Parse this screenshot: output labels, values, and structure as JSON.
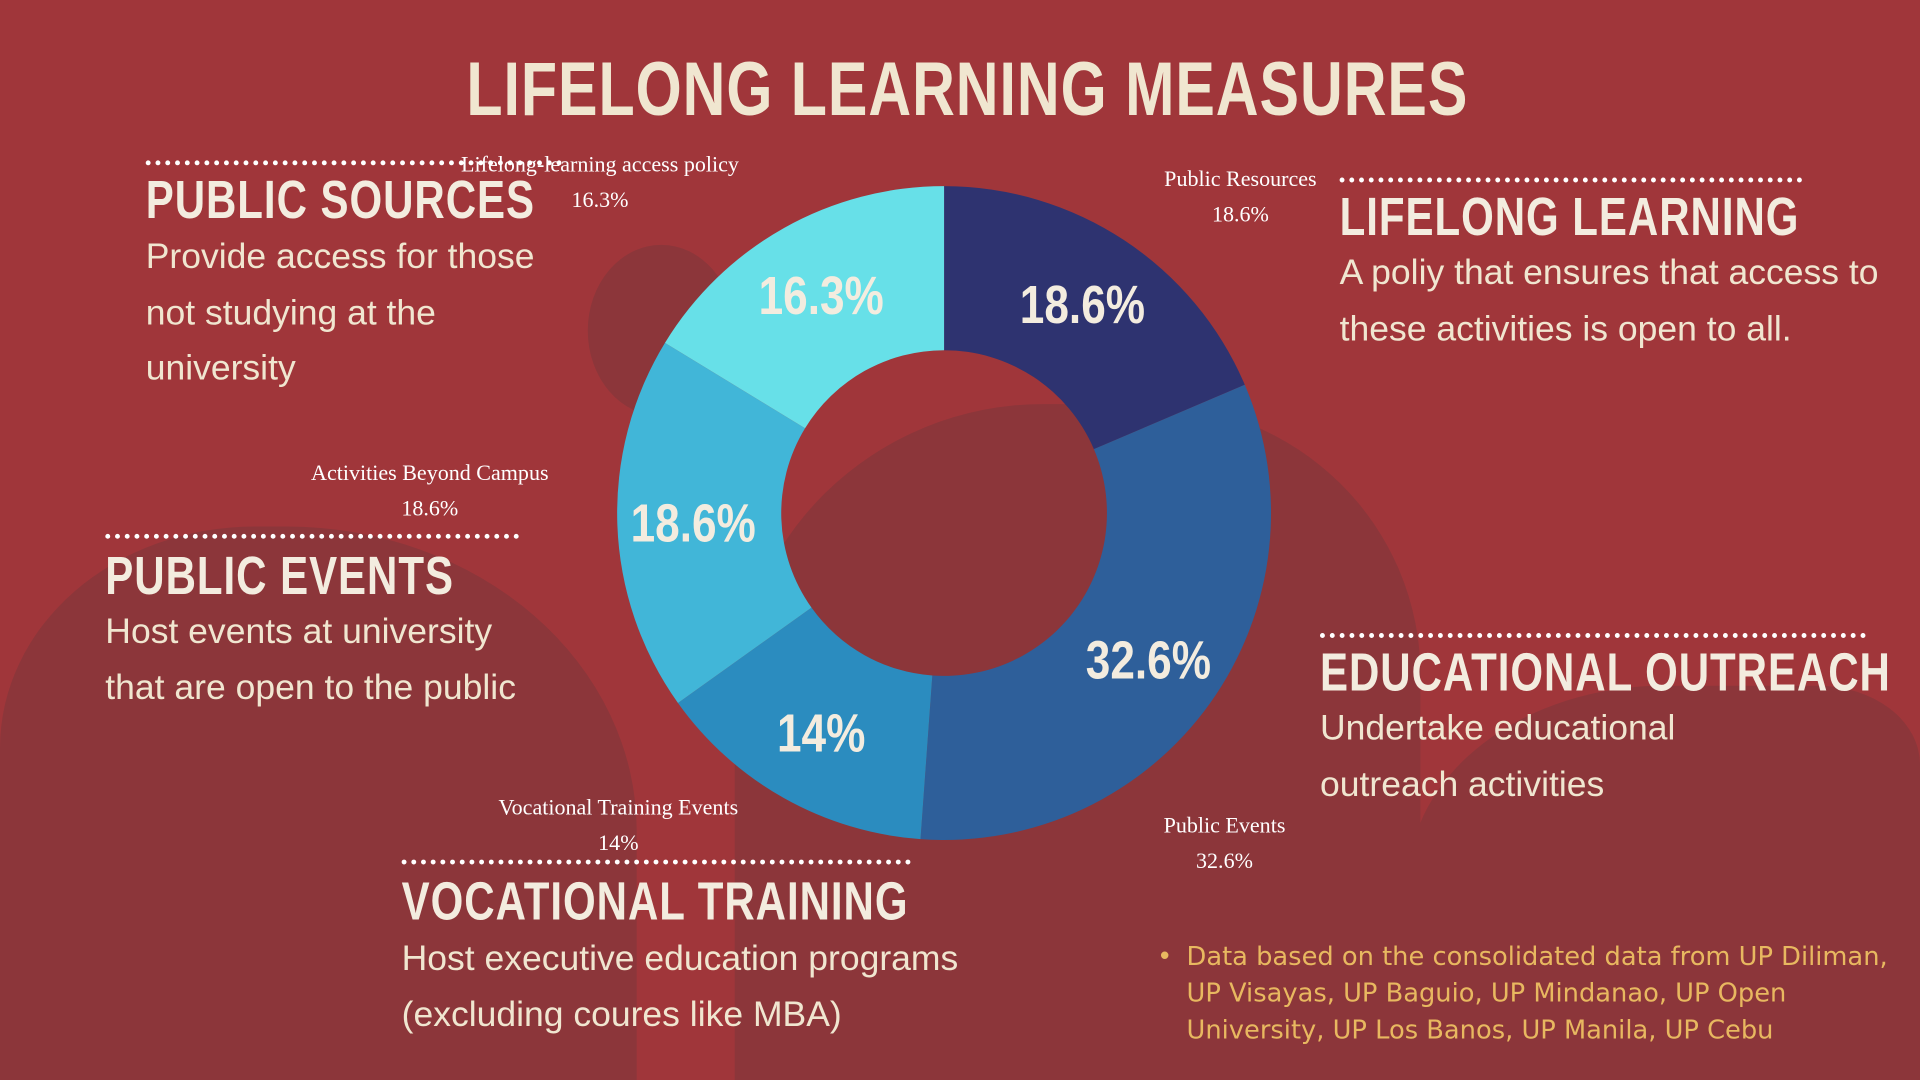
{
  "title": "LIFELONG LEARNING MEASURES",
  "sections": {
    "public_sources": {
      "heading": "PUBLIC SOURCES",
      "text": "Provide access for those not studying at the university"
    },
    "lifelong_learning": {
      "heading": "LIFELONG LEARNING",
      "text": "A poliy that ensures that access to these activities is open to all."
    },
    "public_events": {
      "heading": "PUBLIC EVENTS",
      "text": "Host events at university that are open to the public"
    },
    "educational_outreach": {
      "heading": "EDUCATIONAL OUTREACH",
      "text": "Undertake educational outreach activities"
    },
    "vocational_training": {
      "heading": "VOCATIONAL TRAINING",
      "text": "Host executive education programs (excluding coures like MBA)"
    }
  },
  "note": "Data based on the consolidated data from UP Diliman, UP Visayas, UP Baguio, UP Mindanao, UP Open University, UP Los Banos, UP Manila, UP Cebu",
  "chart_data": {
    "type": "pie",
    "donut": true,
    "categories": [
      "Public Resources",
      "Public Events",
      "Vocational Training Events",
      "Activities Beyond Campus",
      "Lifelong-learning access policy"
    ],
    "values": [
      18.6,
      32.6,
      14,
      18.6,
      16.3
    ],
    "data_labels": [
      "18.6%",
      "32.6%",
      "14%",
      "18.6%",
      "16.3%"
    ],
    "colors": [
      "#2e3370",
      "#2e5f9a",
      "#2b8cbf",
      "#41b6d8",
      "#67e0e8"
    ],
    "start": "12 o'clock, clockwise"
  }
}
